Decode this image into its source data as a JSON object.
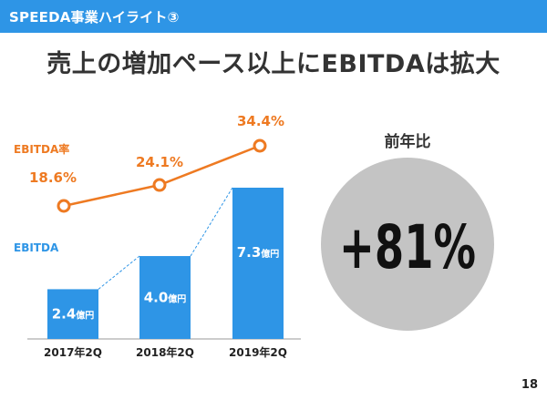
{
  "header": {
    "title": "SPEEDA事業ハイライト③"
  },
  "main_title": "売上の増加ペース以上にEBITDAは拡大",
  "page_number": "18",
  "colors": {
    "header_bg": "#2e95e6",
    "bar": "#2e95e6",
    "rate_line": "#ee7a22",
    "circle": "#c4c4c4",
    "dashed_connector": "#2e95e6"
  },
  "chart_data": {
    "type": "bar",
    "categories": [
      "2017年2Q",
      "2018年2Q",
      "2019年2Q"
    ],
    "series": [
      {
        "name": "EBITDA",
        "values": [
          2.4,
          4.0,
          7.3
        ],
        "labels": [
          "2.4",
          "4.0",
          "7.3"
        ],
        "unit": "億円"
      },
      {
        "name": "EBITDA率",
        "type": "line",
        "values": [
          18.6,
          24.1,
          34.4
        ],
        "labels": [
          "18.6%",
          "24.1%",
          "34.4%"
        ]
      }
    ],
    "legend": {
      "placement": "left"
    },
    "grid": false
  },
  "yoy": {
    "label": "前年比",
    "value": "+81%"
  }
}
